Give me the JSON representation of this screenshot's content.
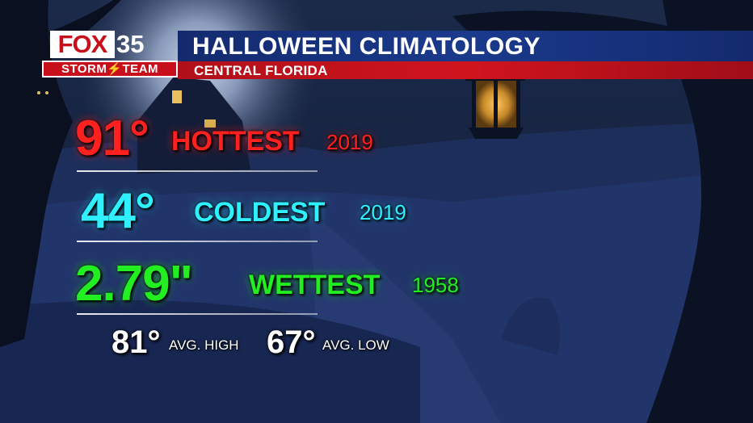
{
  "header": {
    "title": "HALLOWEEN CLIMATOLOGY",
    "subtitle": "CENTRAL FLORIDA"
  },
  "logo": {
    "fox": "FOX",
    "channel": "35",
    "team": "STORM⚡TEAM"
  },
  "stats": {
    "hottest": {
      "value": "91°",
      "label": "HOTTEST",
      "year": "2019"
    },
    "coldest": {
      "value": "44°",
      "label": "COLDEST",
      "year": "2019"
    },
    "wettest": {
      "value": "2.79\"",
      "label": "WETTEST",
      "year": "1958"
    }
  },
  "averages": {
    "high": {
      "value": "81°",
      "label": "AVG. HIGH"
    },
    "low": {
      "value": "67°",
      "label": "AVG. LOW"
    }
  },
  "colors": {
    "hottest": "#ff2020",
    "coldest": "#2ef0ff",
    "wettest": "#22ee22",
    "header_blue": "#1a3a8c",
    "header_red": "#c8101c"
  }
}
